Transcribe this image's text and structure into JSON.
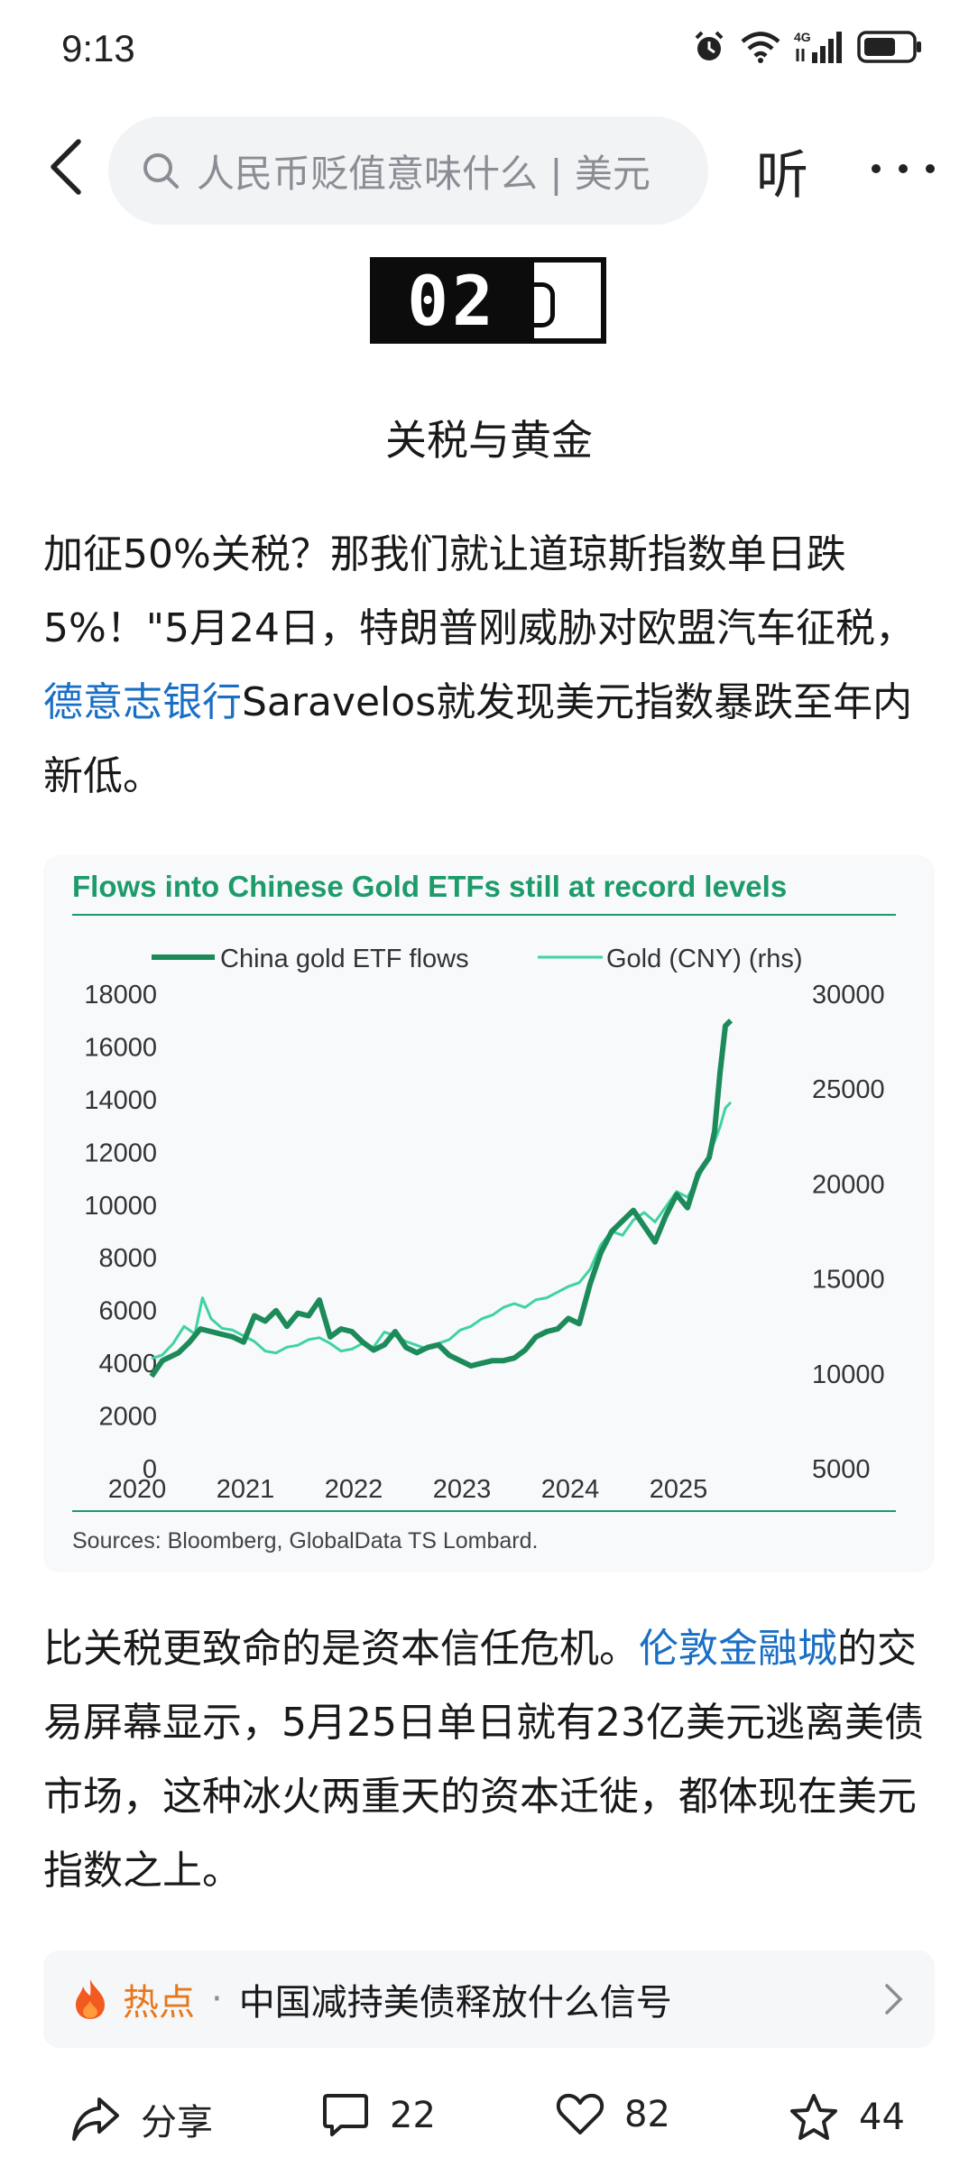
{
  "status_bar": {
    "time": "9:13",
    "icons": [
      "alarm-icon",
      "wifi-icon",
      "4g-signal-icon",
      "battery-icon"
    ],
    "network_label": "4G"
  },
  "nav": {
    "search_text": "人民币贬值意味什么 | 美元",
    "listen_label": "听"
  },
  "section": {
    "number": "02",
    "title": "关税与黄金"
  },
  "article": {
    "para1_before_link": "加征50%关税？那我们就让道琼斯指数单日跌5%！\"5月24日，特朗普刚威胁对欧盟汽车征税，",
    "para1_link": "德意志银行",
    "para1_after_link": "Saravelos就发现美元指数暴跌至年内新低。",
    "para2_before_link": "比关税更致命的是资本信任危机。",
    "para2_link": "伦敦金融城",
    "para2_after_link": "的交易屏幕显示，5月25日单日就有23亿美元逃离美债市场，这种冰火两重天的资本迁徙，都体现在美元指数之上。"
  },
  "chart_data": {
    "type": "line",
    "title": "Flows into Chinese Gold ETFs still at record levels",
    "source": "Sources: Bloomberg, GlobalData TS Lombard.",
    "x_ticks": [
      "2020",
      "2021",
      "2022",
      "2023",
      "2024",
      "2025"
    ],
    "xlim": [
      2020,
      2025.55
    ],
    "y_left_ticks": [
      "18000",
      "16000",
      "14000",
      "12000",
      "10000",
      "8000",
      "6000",
      "4000",
      "2000",
      "0"
    ],
    "y_left_lim": [
      0,
      18000
    ],
    "y_right_ticks": [
      "30000",
      "25000",
      "20000",
      "15000",
      "10000",
      "5000"
    ],
    "y_right_lim": [
      5000,
      30000
    ],
    "colors": {
      "etf": "#1d8a5a",
      "gold": "#3fd3a0",
      "title": "#1d9b6a",
      "rule": "#1d9b6a"
    },
    "series": [
      {
        "name": "China gold ETF flows",
        "axis": "left",
        "x": [
          2020.15,
          2020.25,
          2020.4,
          2020.5,
          2020.6,
          2020.7,
          2020.8,
          2020.9,
          2021.0,
          2021.1,
          2021.2,
          2021.3,
          2021.4,
          2021.5,
          2021.6,
          2021.7,
          2021.8,
          2021.9,
          2022.0,
          2022.1,
          2022.2,
          2022.3,
          2022.4,
          2022.5,
          2022.6,
          2022.7,
          2022.8,
          2022.9,
          2023.0,
          2023.1,
          2023.2,
          2023.3,
          2023.4,
          2023.5,
          2023.6,
          2023.7,
          2023.8,
          2023.9,
          2024.0,
          2024.1,
          2024.2,
          2024.3,
          2024.4,
          2024.5,
          2024.6,
          2024.7,
          2024.8,
          2024.9,
          2025.0,
          2025.1,
          2025.2,
          2025.3,
          2025.35,
          2025.4,
          2025.45,
          2025.5
        ],
        "values": [
          3500,
          4100,
          4400,
          4800,
          5300,
          5200,
          5100,
          5000,
          4800,
          5800,
          5600,
          6000,
          5400,
          5900,
          5800,
          6400,
          5000,
          5300,
          5200,
          4800,
          4500,
          4700,
          5200,
          4600,
          4400,
          4600,
          4700,
          4300,
          4100,
          3900,
          4000,
          4100,
          4100,
          4200,
          4500,
          5000,
          5200,
          5300,
          5700,
          5500,
          7000,
          8200,
          9000,
          9400,
          9800,
          9200,
          8600,
          9600,
          10400,
          9900,
          11200,
          11800,
          12800,
          15000,
          16800,
          17000
        ]
      },
      {
        "name": "Gold (CNY) (rhs)",
        "axis": "right",
        "x": [
          2020.15,
          2020.25,
          2020.35,
          2020.45,
          2020.55,
          2020.62,
          2020.7,
          2020.8,
          2020.9,
          2021.0,
          2021.1,
          2021.2,
          2021.3,
          2021.4,
          2021.5,
          2021.6,
          2021.7,
          2021.8,
          2021.9,
          2022.0,
          2022.1,
          2022.2,
          2022.3,
          2022.4,
          2022.5,
          2022.6,
          2022.7,
          2022.8,
          2022.9,
          2023.0,
          2023.1,
          2023.2,
          2023.3,
          2023.4,
          2023.5,
          2023.6,
          2023.7,
          2023.8,
          2023.9,
          2024.0,
          2024.1,
          2024.2,
          2024.3,
          2024.4,
          2024.5,
          2024.6,
          2024.7,
          2024.8,
          2024.9,
          2025.0,
          2025.1,
          2025.2,
          2025.3,
          2025.4,
          2025.45,
          2025.5
        ],
        "values": [
          10800,
          11000,
          11600,
          12500,
          12100,
          14000,
          12900,
          12400,
          12300,
          12000,
          11700,
          11200,
          11100,
          11400,
          11500,
          11800,
          11900,
          11600,
          11200,
          11300,
          11600,
          11400,
          12200,
          12000,
          11700,
          11500,
          11300,
          11600,
          11800,
          12300,
          12500,
          12900,
          13100,
          13500,
          13700,
          13500,
          13900,
          14000,
          14300,
          14600,
          14800,
          15500,
          16800,
          17500,
          17300,
          18100,
          18500,
          18000,
          18800,
          19600,
          19300,
          20300,
          21500,
          23000,
          24000,
          24300
        ]
      }
    ],
    "grid": false,
    "legend": "top"
  },
  "hot_topic": {
    "label": "热点",
    "separator": "·",
    "text": "中国减持美债释放什么信号"
  },
  "actions": {
    "share_label": "分享",
    "comment_count": "22",
    "like_count": "82",
    "favorite_count": "44"
  }
}
